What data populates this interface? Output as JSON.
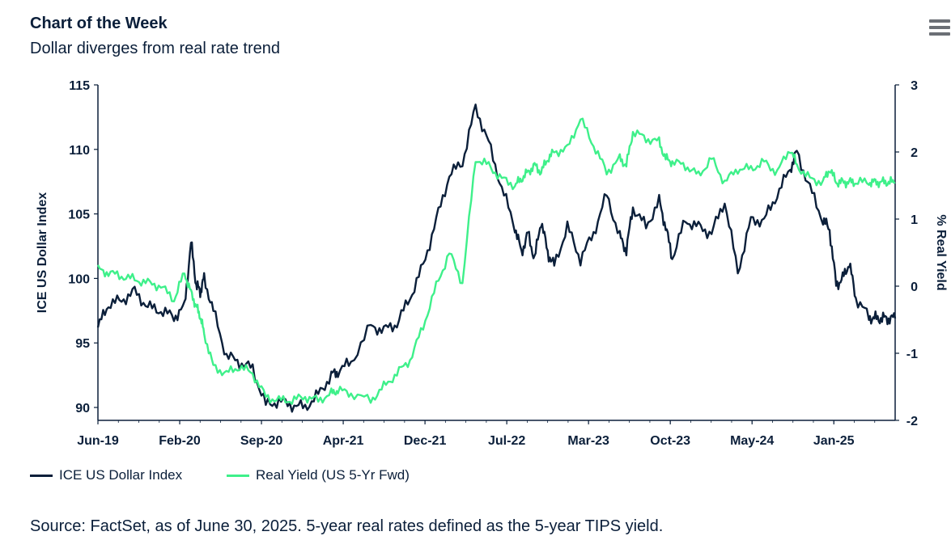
{
  "header": {
    "title": "Chart of the Week",
    "subtitle": "Dollar diverges from real rate trend"
  },
  "menu": {
    "icon": "hamburger-menu-icon"
  },
  "colors": {
    "dollar": "#0b1f3a",
    "yield": "#3ef08a",
    "text": "#0b1f3a",
    "axis": "#0b1f3a"
  },
  "legend": {
    "dollar_label": "ICE US Dollar Index",
    "yield_label": "Real Yield (US 5-Yr Fwd)"
  },
  "source": "Source: FactSet, as of June 30, 2025. 5-year real rates defined as the 5-year TIPS yield.",
  "chart_data": {
    "type": "line",
    "x_tick_labels": [
      "Jun-19",
      "Feb-20",
      "Sep-20",
      "Apr-21",
      "Dec-21",
      "Jul-22",
      "Mar-23",
      "Oct-23",
      "May-24",
      "Jan-25"
    ],
    "x_range": [
      2019.42,
      2025.5
    ],
    "y_left": {
      "label": "ICE US Dollar Index",
      "range": [
        89,
        115
      ],
      "ticks": [
        90,
        95,
        100,
        105,
        110,
        115
      ]
    },
    "y_right": {
      "label": "% Real Yield",
      "range": [
        -2,
        3
      ],
      "ticks": [
        -2,
        -1,
        0,
        1,
        2,
        3
      ]
    },
    "series": [
      {
        "name": "ICE US Dollar Index",
        "axis": "left",
        "x": [
          2019.42,
          2019.5,
          2019.6,
          2019.7,
          2019.8,
          2019.9,
          2020.0,
          2020.08,
          2020.13,
          2020.17,
          2020.2,
          2020.23,
          2020.3,
          2020.4,
          2020.5,
          2020.6,
          2020.7,
          2020.8,
          2020.9,
          2021.0,
          2021.1,
          2021.2,
          2021.25,
          2021.35,
          2021.5,
          2021.6,
          2021.7,
          2021.8,
          2021.9,
          2022.0,
          2022.1,
          2022.2,
          2022.3,
          2022.4,
          2022.5,
          2022.6,
          2022.65,
          2022.7,
          2022.75,
          2022.8,
          2022.85,
          2022.9,
          2023.0,
          2023.1,
          2023.2,
          2023.3,
          2023.4,
          2023.45,
          2023.5,
          2023.6,
          2023.7,
          2023.75,
          2023.8,
          2023.9,
          2024.0,
          2024.1,
          2024.2,
          2024.3,
          2024.4,
          2024.5,
          2024.6,
          2024.7,
          2024.75,
          2024.85,
          2024.95,
          2025.0,
          2025.05,
          2025.1,
          2025.15,
          2025.2,
          2025.3,
          2025.35,
          2025.4,
          2025.45,
          2025.5
        ],
        "y": [
          96.2,
          98.0,
          98.3,
          99.0,
          97.8,
          97.5,
          97.0,
          97.8,
          102.8,
          99.5,
          99.0,
          100.0,
          97.5,
          94.0,
          93.5,
          93.0,
          90.2,
          90.5,
          90.2,
          90.0,
          91.0,
          92.5,
          92.8,
          93.5,
          96.3,
          96.0,
          96.5,
          98.5,
          101.0,
          104.5,
          108.0,
          109.0,
          113.3,
          110.5,
          107.0,
          104.0,
          102.0,
          103.5,
          101.5,
          104.5,
          102.0,
          101.0,
          104.0,
          101.5,
          103.5,
          106.5,
          103.2,
          102.2,
          105.5,
          104.0,
          106.0,
          104.0,
          101.6,
          104.5,
          104.0,
          103.5,
          106.0,
          100.5,
          104.5,
          104.5,
          106.5,
          108.5,
          109.8,
          107.0,
          104.5,
          103.8,
          99.5,
          100.0,
          101.2,
          98.5,
          97.0,
          96.9,
          96.9,
          96.9,
          96.9
        ]
      },
      {
        "name": "Real Yield (US 5-Yr Fwd)",
        "axis": "right",
        "x": [
          2019.42,
          2019.5,
          2019.6,
          2019.7,
          2019.8,
          2019.9,
          2020.0,
          2020.08,
          2020.13,
          2020.17,
          2020.2,
          2020.23,
          2020.3,
          2020.4,
          2020.5,
          2020.6,
          2020.7,
          2020.8,
          2020.9,
          2021.0,
          2021.1,
          2021.2,
          2021.25,
          2021.35,
          2021.5,
          2021.6,
          2021.7,
          2021.8,
          2021.9,
          2022.0,
          2022.1,
          2022.2,
          2022.3,
          2022.4,
          2022.5,
          2022.6,
          2022.65,
          2022.7,
          2022.75,
          2022.8,
          2022.85,
          2022.9,
          2023.0,
          2023.1,
          2023.2,
          2023.3,
          2023.4,
          2023.45,
          2023.5,
          2023.6,
          2023.7,
          2023.75,
          2023.8,
          2023.9,
          2024.0,
          2024.1,
          2024.2,
          2024.3,
          2024.4,
          2024.5,
          2024.6,
          2024.7,
          2024.75,
          2024.85,
          2024.95,
          2025.0,
          2025.05,
          2025.1,
          2025.15,
          2025.2,
          2025.3,
          2025.35,
          2025.4,
          2025.45,
          2025.5
        ],
        "y": [
          0.25,
          0.2,
          0.15,
          0.1,
          0.05,
          0.0,
          -0.2,
          0.2,
          -0.1,
          -0.3,
          -0.45,
          -0.7,
          -1.2,
          -1.3,
          -1.2,
          -1.3,
          -1.65,
          -1.7,
          -1.7,
          -1.65,
          -1.7,
          -1.6,
          -1.55,
          -1.6,
          -1.7,
          -1.5,
          -1.3,
          -1.1,
          -0.6,
          0.0,
          0.5,
          0.05,
          1.9,
          1.8,
          1.6,
          1.5,
          1.6,
          1.7,
          1.8,
          1.7,
          1.9,
          2.0,
          2.05,
          2.5,
          2.1,
          1.7,
          1.9,
          1.8,
          2.3,
          2.2,
          2.15,
          1.9,
          1.85,
          1.8,
          1.65,
          1.9,
          1.55,
          1.75,
          1.75,
          1.85,
          1.7,
          2.05,
          1.8,
          1.6,
          1.55,
          1.75,
          1.55,
          1.55,
          1.55,
          1.55,
          1.55,
          1.55,
          1.55,
          1.55,
          1.55
        ]
      }
    ]
  }
}
